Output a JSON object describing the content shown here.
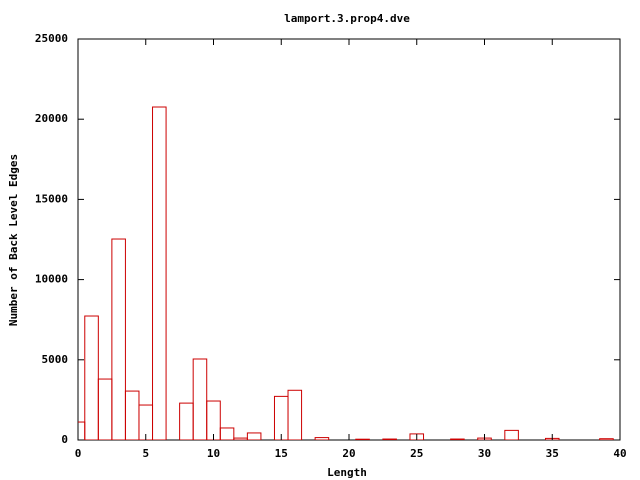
{
  "chart_data": {
    "type": "bar",
    "title": "lamport.3.prop4.dve",
    "x_label": "Length",
    "y_label": "Number of Back Level Edges",
    "x": [
      0,
      1,
      2,
      3,
      4,
      5,
      6,
      8,
      9,
      10,
      11,
      12,
      13,
      15,
      16,
      18,
      21,
      23,
      25,
      28,
      30,
      32,
      35,
      39
    ],
    "values": [
      1120,
      7730,
      3800,
      12530,
      3050,
      2180,
      20760,
      2300,
      5050,
      2430,
      750,
      120,
      440,
      2720,
      3100,
      150,
      50,
      60,
      380,
      60,
      120,
      600,
      100,
      80
    ],
    "color": "#cc0000",
    "xlim": [
      0,
      40
    ],
    "xticks": [
      0,
      5,
      10,
      15,
      20,
      25,
      30,
      35,
      40
    ],
    "ylim": [
      0,
      25000
    ],
    "yticks": [
      0,
      5000,
      10000,
      15000,
      20000,
      25000
    ]
  }
}
